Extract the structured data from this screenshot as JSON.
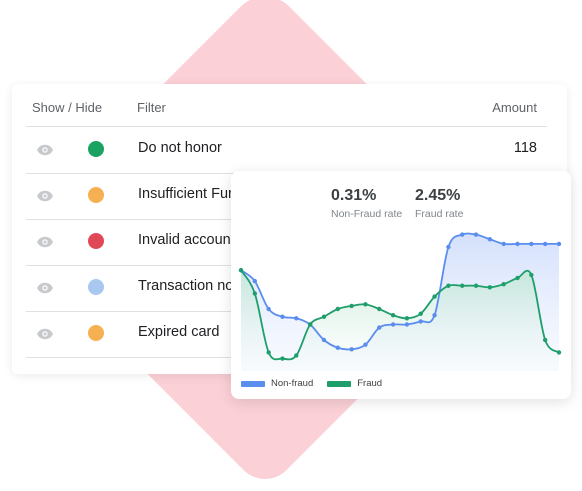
{
  "table": {
    "headers": {
      "show_hide": "Show / Hide",
      "filter": "Filter",
      "amount": "Amount"
    },
    "rows": [
      {
        "label": "Do not honor",
        "amount": "118",
        "dot_color": "#1aa260"
      },
      {
        "label": "Insufficient Fur",
        "amount": "",
        "dot_color": "#f6b052"
      },
      {
        "label": "Invalid account",
        "amount": "",
        "dot_color": "#e04858"
      },
      {
        "label": "Transaction no",
        "amount": "",
        "dot_color": "#a8c8f0"
      },
      {
        "label": "Expired card",
        "amount": "",
        "dot_color": "#f6b052"
      }
    ]
  },
  "chart_card": {
    "stats": [
      {
        "value": "0.31%",
        "caption": "Non-Fraud rate"
      },
      {
        "value": "2.45%",
        "caption": "Fraud rate"
      }
    ],
    "legend": [
      {
        "name": "Non-fraud",
        "color": "#5b8def"
      },
      {
        "name": "Fraud",
        "color": "#1e9e6a"
      }
    ]
  },
  "chart_data": {
    "type": "area",
    "title": "",
    "xlabel": "",
    "ylabel": "",
    "ylim": [
      0,
      100
    ],
    "grid": false,
    "legend_position": "bottom-left",
    "series": [
      {
        "name": "Non-fraud",
        "color": "#5b8def",
        "values": [
          65,
          58,
          40,
          35,
          34,
          30,
          20,
          15,
          14,
          17,
          28,
          30,
          30,
          32,
          36,
          80,
          88,
          88,
          85,
          82,
          82,
          82,
          82,
          82
        ]
      },
      {
        "name": "Fraud",
        "color": "#1e9e6a",
        "values": [
          65,
          50,
          12,
          8,
          10,
          30,
          35,
          40,
          42,
          43,
          40,
          36,
          34,
          37,
          48,
          55,
          55,
          55,
          54,
          56,
          60,
          62,
          20,
          12
        ]
      }
    ]
  }
}
